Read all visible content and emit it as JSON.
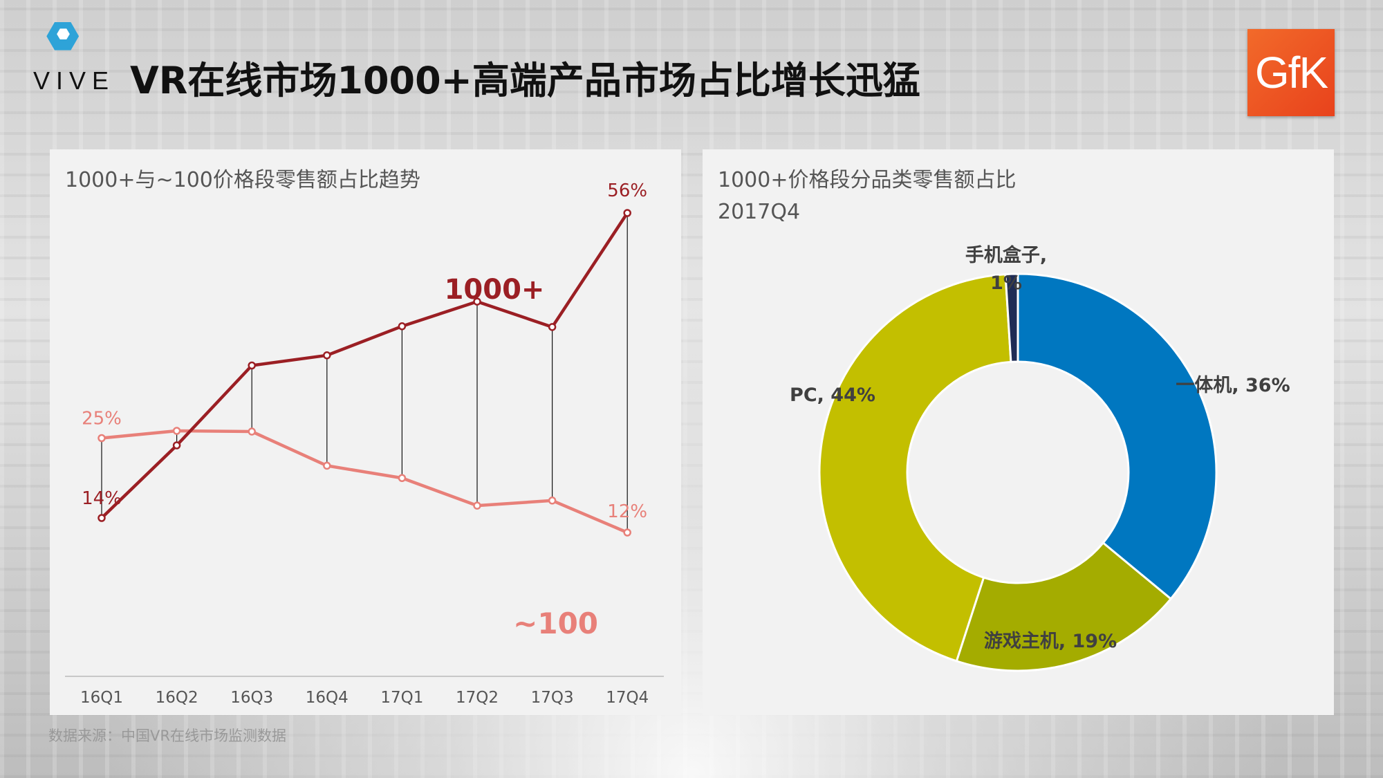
{
  "header": {
    "brand_left": "VIVE",
    "title": "VR在线市场1000+高端产品市场占比增长迅猛",
    "brand_right": "GfK"
  },
  "colors": {
    "series_high": "#9b1f24",
    "series_low": "#e88079",
    "pie": [
      "#0077c0",
      "#a4ac00",
      "#c3bf00",
      "#1f2c55"
    ]
  },
  "chart_data": [
    {
      "type": "line",
      "title": "1000+与~100价格段零售额占比趋势",
      "categories": [
        "16Q1",
        "16Q2",
        "16Q3",
        "16Q4",
        "17Q1",
        "17Q2",
        "17Q3",
        "17Q4"
      ],
      "series": [
        {
          "name": "1000+",
          "values": [
            14,
            24,
            35,
            36.4,
            40.4,
            43.8,
            40.3,
            56
          ]
        },
        {
          "name": "~100",
          "values": [
            25,
            26,
            25.9,
            21.2,
            19.5,
            15.7,
            16.4,
            12
          ]
        }
      ],
      "point_labels": {
        "1000+": {
          "first": "14%",
          "last": "56%"
        },
        "~100": {
          "first": "25%",
          "last": "12%"
        }
      },
      "ylim": [
        0,
        60
      ],
      "grid": false
    },
    {
      "type": "pie",
      "title": "1000+价格段分品类零售额占比",
      "subtitle": "2017Q4",
      "slices": [
        {
          "name": "一体机",
          "value": 36,
          "label": "一体机, 36%"
        },
        {
          "name": "游戏主机",
          "value": 19,
          "label": "游戏主机, 19%"
        },
        {
          "name": "PC",
          "value": 44,
          "label": "PC, 44%"
        },
        {
          "name": "手机盒子",
          "value": 1,
          "label_line1": "手机盒子,",
          "label_line2": "1%"
        }
      ]
    }
  ],
  "footer": {
    "source": "数据来源：中国VR在线市场监测数据"
  }
}
